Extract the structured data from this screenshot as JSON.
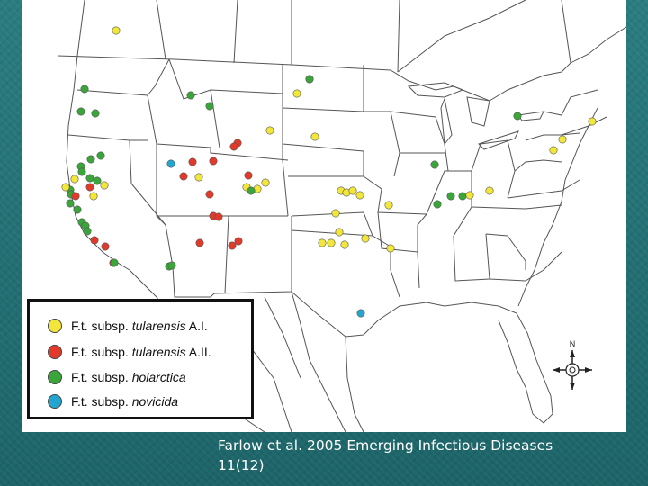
{
  "colors": {
    "subsp_tularensis_AI": "#f2e63a",
    "subsp_tularensis_AII": "#e23a2a",
    "subsp_holarctica": "#3aa63a",
    "subsp_novicida": "#22a6cf"
  },
  "legend": {
    "items": [
      {
        "prefix": "F.t.",
        "mid": " subsp. ",
        "name": "tularensis",
        "suffix": " A.I.",
        "color_key": "subsp_tularensis_AI"
      },
      {
        "prefix": "F.t.",
        "mid": " subsp. ",
        "name": "tularensis",
        "suffix": " A.II.",
        "color_key": "subsp_tularensis_AII"
      },
      {
        "prefix": "F.t.",
        "mid": " subsp. ",
        "name": "holarctica",
        "suffix": "",
        "color_key": "subsp_holarctica"
      },
      {
        "prefix": "F.t.",
        "mid": " subsp. ",
        "name": "novicida",
        "suffix": "",
        "color_key": "subsp_novicida"
      }
    ]
  },
  "compass": {
    "north_label": "N"
  },
  "caption": {
    "line1": "Farlow et al. 2005 Emerging Infectious Diseases",
    "line2": "11(12)"
  }
}
